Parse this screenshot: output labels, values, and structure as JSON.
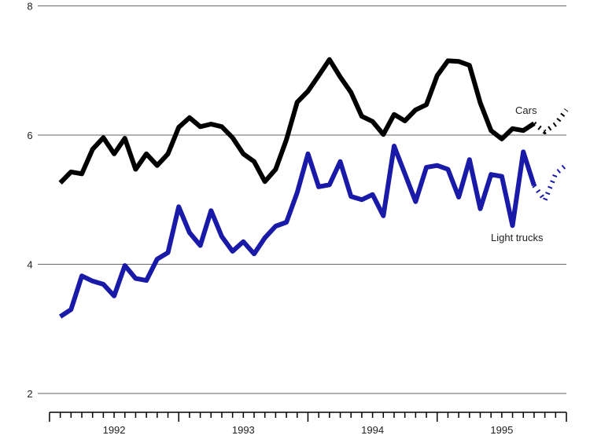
{
  "chart_data": {
    "type": "line",
    "x": [
      1992.0833,
      1992.1667,
      1992.25,
      1992.3333,
      1992.4167,
      1992.5,
      1992.5833,
      1992.6667,
      1992.75,
      1992.8333,
      1992.9167,
      1993,
      1993.0833,
      1993.1667,
      1993.25,
      1993.3333,
      1993.4167,
      1993.5,
      1993.5833,
      1993.6667,
      1993.75,
      1993.8333,
      1993.9167,
      1994,
      1994.0833,
      1994.1667,
      1994.25,
      1994.3333,
      1994.4167,
      1994.5,
      1994.5833,
      1994.6667,
      1994.75,
      1994.8333,
      1994.9167,
      1995,
      1995.0833,
      1995.1667,
      1995.25,
      1995.3333,
      1995.4167,
      1995.5,
      1995.5833,
      1995.6667,
      1995.75,
      1995.8333,
      1995.9167,
      1996
    ],
    "series": [
      {
        "name": "Cars",
        "color": "#000000",
        "values": [
          5.26,
          5.43,
          5.4,
          5.78,
          5.96,
          5.71,
          5.95,
          5.47,
          5.71,
          5.53,
          5.71,
          6.12,
          6.27,
          6.13,
          6.17,
          6.13,
          5.96,
          5.71,
          5.59,
          5.28,
          5.47,
          5.93,
          6.51,
          6.68,
          6.92,
          7.17,
          6.9,
          6.66,
          6.29,
          6.21,
          6.01,
          6.32,
          6.22,
          6.39,
          6.47,
          6.92,
          7.15,
          7.14,
          7.08,
          6.5,
          6.07,
          5.94,
          6.1,
          6.07,
          6.18,
          null,
          null,
          null
        ],
        "forecast_values": [
          null,
          null,
          null,
          null,
          null,
          null,
          null,
          null,
          null,
          null,
          null,
          null,
          null,
          null,
          null,
          null,
          null,
          null,
          null,
          null,
          null,
          null,
          null,
          null,
          null,
          null,
          null,
          null,
          null,
          null,
          null,
          null,
          null,
          null,
          null,
          null,
          null,
          null,
          null,
          null,
          null,
          null,
          null,
          null,
          6.18,
          6.05,
          6.17,
          6.39
        ]
      },
      {
        "name": "Light trucks",
        "color": "#1a1aa8",
        "values": [
          3.19,
          3.3,
          3.82,
          3.74,
          3.69,
          3.51,
          3.98,
          3.78,
          3.75,
          4.08,
          4.18,
          4.89,
          4.49,
          4.29,
          4.83,
          4.43,
          4.2,
          4.35,
          4.16,
          4.41,
          4.59,
          4.65,
          5.11,
          5.71,
          5.2,
          5.23,
          5.59,
          5.05,
          5.0,
          5.08,
          4.75,
          5.83,
          5.4,
          4.97,
          5.5,
          5.53,
          5.47,
          5.04,
          5.62,
          4.86,
          5.39,
          5.36,
          4.6,
          5.74,
          5.22,
          null,
          null,
          null
        ],
        "forecast_values": [
          null,
          null,
          null,
          null,
          null,
          null,
          null,
          null,
          null,
          null,
          null,
          null,
          null,
          null,
          null,
          null,
          null,
          null,
          null,
          null,
          null,
          null,
          null,
          null,
          null,
          null,
          null,
          null,
          null,
          null,
          null,
          null,
          null,
          null,
          null,
          null,
          null,
          null,
          null,
          null,
          null,
          null,
          null,
          null,
          5.22,
          4.99,
          5.4,
          5.54
        ]
      }
    ],
    "annotations": [
      "Cars",
      "Light trucks"
    ],
    "xlim": [
      1991.83,
      1996
    ],
    "xticks": [
      {
        "value": 1992.5,
        "label": "1992"
      },
      {
        "value": 1993.5,
        "label": "1993"
      },
      {
        "value": 1994.5,
        "label": "1994"
      },
      {
        "value": 1995.5,
        "label": "1995"
      }
    ],
    "ylim": [
      1.8,
      8.05
    ],
    "yticks": [
      2,
      4,
      6,
      8
    ],
    "grid": true
  }
}
